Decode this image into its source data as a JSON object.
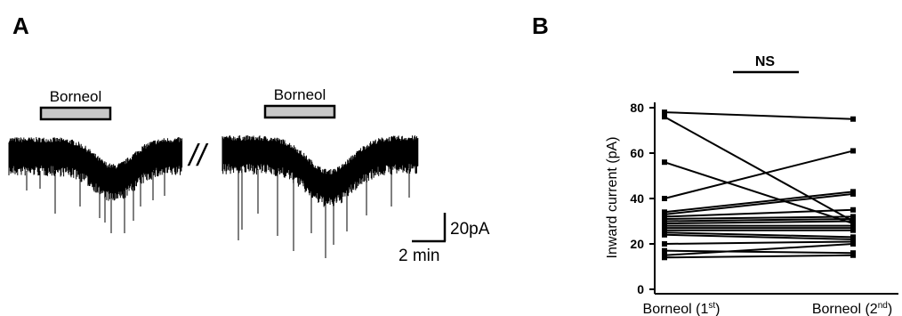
{
  "panels": {
    "a": "A",
    "b": "B"
  },
  "trace": {
    "drug_label_1": "Borneol",
    "drug_label_2": "Borneol",
    "break_mark": "//",
    "scale_current": "20pA",
    "scale_time": "2 min",
    "bar_fill_color": "#c8c8c8",
    "trace_color": "#000000"
  },
  "chart_data": {
    "type": "line",
    "title": "",
    "xlabel": "",
    "ylabel": "Inward current (pA)",
    "categories": [
      "Borneol (1st)",
      "Borneol (2nd)"
    ],
    "category_main": [
      "Borneol (1",
      "Borneol (2"
    ],
    "category_sup": [
      "st",
      "nd"
    ],
    "category_close": ")",
    "ylim": [
      0,
      80
    ],
    "yticks": [
      0,
      20,
      40,
      60,
      80
    ],
    "significance": "NS",
    "series": [
      {
        "values": [
          78,
          75
        ]
      },
      {
        "values": [
          76,
          30
        ]
      },
      {
        "values": [
          56,
          29
        ]
      },
      {
        "values": [
          40,
          61
        ]
      },
      {
        "values": [
          34,
          43
        ]
      },
      {
        "values": [
          33,
          42
        ]
      },
      {
        "values": [
          32,
          35
        ]
      },
      {
        "values": [
          31,
          32
        ]
      },
      {
        "values": [
          30,
          31
        ]
      },
      {
        "values": [
          29,
          30
        ]
      },
      {
        "values": [
          28,
          28
        ]
      },
      {
        "values": [
          27,
          27
        ]
      },
      {
        "values": [
          26,
          26
        ]
      },
      {
        "values": [
          25,
          23
        ]
      },
      {
        "values": [
          24,
          22
        ]
      },
      {
        "values": [
          20,
          21
        ]
      },
      {
        "values": [
          17,
          16
        ]
      },
      {
        "values": [
          15,
          20
        ]
      },
      {
        "values": [
          14,
          15
        ]
      }
    ]
  }
}
